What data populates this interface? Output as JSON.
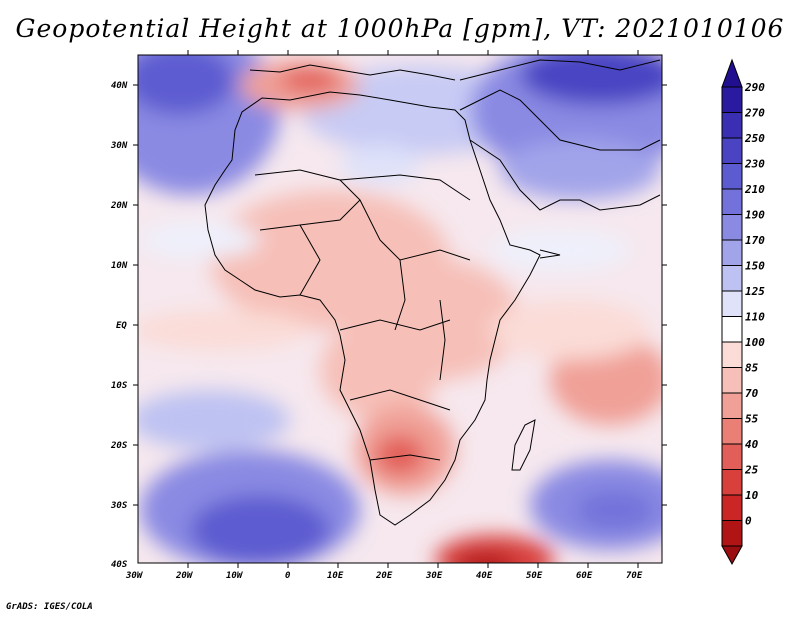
{
  "title": "Geopotential Height at 1000hPa [gpm], VT: 2021010106",
  "credit": "GrADS: IGES/COLA",
  "map": {
    "region": "Africa",
    "lat_labels": [
      "40N",
      "30N",
      "20N",
      "10N",
      "EQ",
      "10S",
      "20S",
      "30S",
      "40S"
    ],
    "lon_labels": [
      "30W",
      "20W",
      "10W",
      "0",
      "10E",
      "20E",
      "30E",
      "40E",
      "50E",
      "60E",
      "70E"
    ]
  },
  "colorbar": {
    "levels": [
      "290",
      "270",
      "250",
      "230",
      "210",
      "190",
      "170",
      "150",
      "125",
      "110",
      "100",
      "85",
      "70",
      "55",
      "40",
      "25",
      "10",
      "0"
    ],
    "colors": [
      "#2a1aa0",
      "#3a2fb3",
      "#4a44c3",
      "#5d5bd0",
      "#7272da",
      "#8a8ae3",
      "#a2a4ea",
      "#bec2f2",
      "#dfe2f9",
      "#ffffff",
      "#fbdcd7",
      "#f6c0b8",
      "#f0a097",
      "#ea7f76",
      "#e25e58",
      "#d8403c",
      "#c92625",
      "#b01414"
    ],
    "arrow_top_color": "#201090",
    "arrow_bottom_color": "#9a0d10"
  }
}
